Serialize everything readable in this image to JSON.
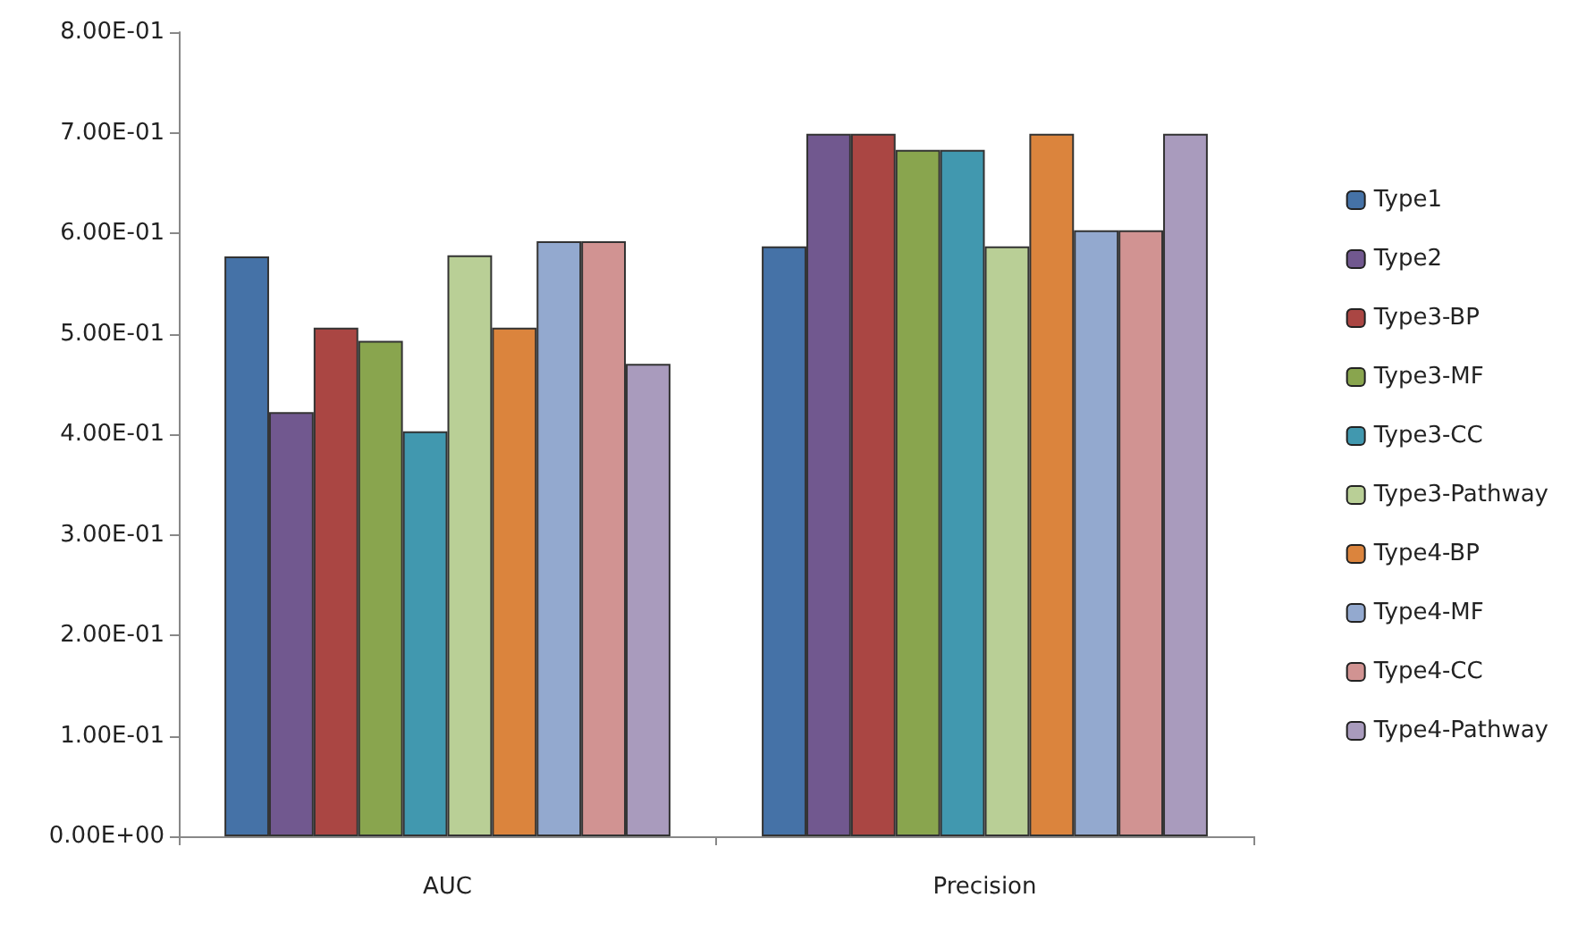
{
  "chart_data": {
    "type": "bar",
    "categories": [
      "AUC",
      "Precision"
    ],
    "series": [
      {
        "name": "Type1",
        "color": "#4572a7",
        "values": [
          0.577,
          0.587
        ]
      },
      {
        "name": "Type2",
        "color": "#71588f",
        "values": [
          0.422,
          0.699
        ]
      },
      {
        "name": "Type3-BP",
        "color": "#aa4643",
        "values": [
          0.506,
          0.699
        ]
      },
      {
        "name": "Type3-MF",
        "color": "#89a54e",
        "values": [
          0.493,
          0.683
        ]
      },
      {
        "name": "Type3-CC",
        "color": "#4198af",
        "values": [
          0.403,
          0.683
        ]
      },
      {
        "name": "Type3-Pathway",
        "color": "#b9cf96",
        "values": [
          0.578,
          0.587
        ]
      },
      {
        "name": "Type4-BP",
        "color": "#db843d",
        "values": [
          0.506,
          0.699
        ]
      },
      {
        "name": "Type4-MF",
        "color": "#93a9cf",
        "values": [
          0.592,
          0.603
        ]
      },
      {
        "name": "Type4-CC",
        "color": "#d19392",
        "values": [
          0.592,
          0.603
        ]
      },
      {
        "name": "Type4-Pathway",
        "color": "#a99bbd",
        "values": [
          0.47,
          0.699
        ]
      }
    ],
    "ylim": [
      0,
      0.8
    ],
    "yticks": [
      {
        "value": 0,
        "label": "0.00E+00"
      },
      {
        "value": 0.1,
        "label": "1.00E-01"
      },
      {
        "value": 0.2,
        "label": "2.00E-01"
      },
      {
        "value": 0.3,
        "label": "3.00E-01"
      },
      {
        "value": 0.4,
        "label": "4.00E-01"
      },
      {
        "value": 0.5,
        "label": "5.00E-01"
      },
      {
        "value": 0.6,
        "label": "6.00E-01"
      },
      {
        "value": 0.7,
        "label": "7.00E-01"
      },
      {
        "value": 0.8,
        "label": "8.00E-01"
      }
    ],
    "grid": false,
    "legend": "right"
  }
}
